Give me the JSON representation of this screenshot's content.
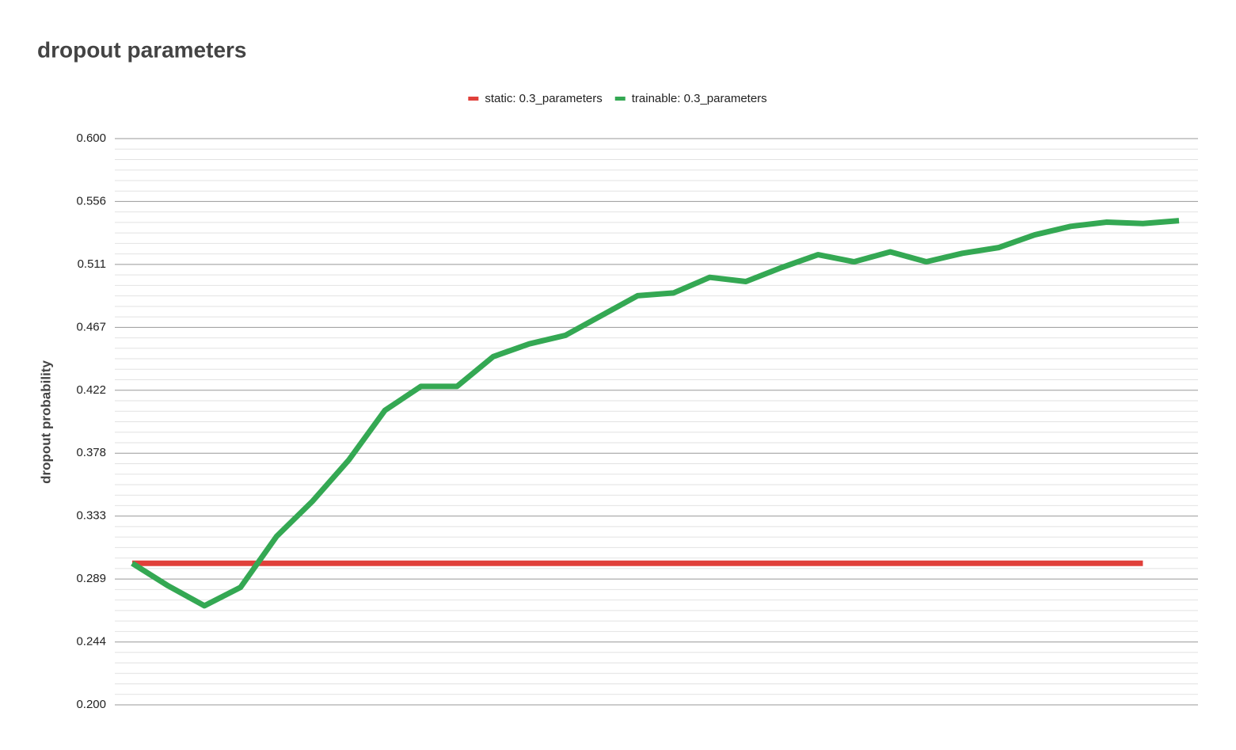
{
  "chart_data": {
    "type": "line",
    "title": "dropout parameters",
    "y_label": "dropout probability",
    "categories": [
      null,
      null,
      null,
      null,
      null,
      null,
      null,
      null,
      null,
      null,
      null,
      null,
      null,
      null,
      null,
      null,
      null,
      null,
      null,
      null,
      null,
      null,
      null,
      null,
      null,
      null,
      null,
      null,
      null,
      null
    ],
    "series": [
      {
        "name": "static: 0.3_parameters",
        "color": "#e0403a",
        "values": [
          0.3,
          0.3,
          0.3,
          0.3,
          0.3,
          0.3,
          0.3,
          0.3,
          0.3,
          0.3,
          0.3,
          0.3,
          0.3,
          0.3,
          0.3,
          0.3,
          0.3,
          0.3,
          0.3,
          0.3,
          0.3,
          0.3,
          0.3,
          0.3,
          0.3,
          0.3,
          0.3,
          0.3,
          0.3,
          null
        ]
      },
      {
        "name": "trainable: 0.3_parameters",
        "color": "#34a853",
        "values": [
          0.3,
          0.284,
          0.27,
          0.283,
          0.319,
          0.344,
          0.373,
          0.408,
          0.425,
          0.425,
          0.446,
          0.455,
          0.461,
          0.475,
          0.489,
          0.491,
          0.502,
          0.499,
          0.509,
          0.518,
          0.513,
          0.52,
          0.513,
          0.519,
          0.523,
          0.532,
          0.538,
          0.541,
          0.54,
          0.542
        ]
      }
    ],
    "ylim": [
      0.2,
      0.6
    ],
    "yticks": [
      {
        "value": 0.2,
        "label": "0.200"
      },
      {
        "value": 0.24444,
        "label": "0.244"
      },
      {
        "value": 0.28889,
        "label": "0.289"
      },
      {
        "value": 0.33333,
        "label": "0.333"
      },
      {
        "value": 0.37778,
        "label": "0.378"
      },
      {
        "value": 0.42222,
        "label": "0.422"
      },
      {
        "value": 0.46667,
        "label": "0.467"
      },
      {
        "value": 0.51111,
        "label": "0.511"
      },
      {
        "value": 0.55556,
        "label": "0.556"
      },
      {
        "value": 0.6,
        "label": "0.600"
      }
    ],
    "grid": true,
    "minor_ticks_per_major": 5,
    "legend": "top"
  }
}
